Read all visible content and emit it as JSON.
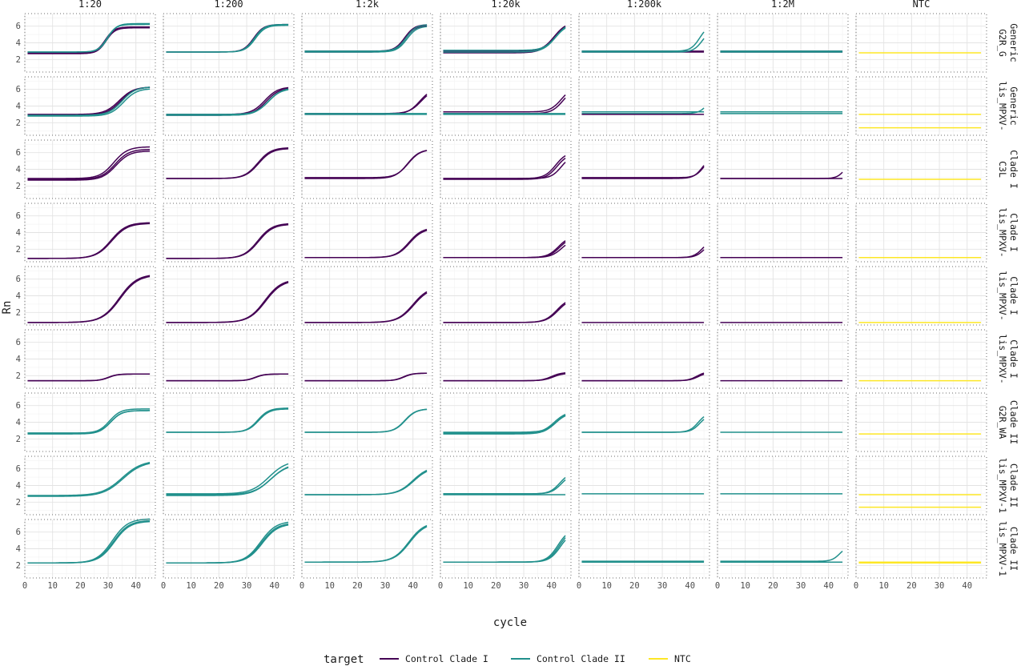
{
  "chart_data": {
    "type": "line",
    "title": "",
    "xlabel": "cycle",
    "ylabel": "Rn",
    "xlim": [
      0,
      47
    ],
    "ylim": [
      0.5,
      7.5
    ],
    "x_ticks": [
      0,
      10,
      20,
      30,
      40
    ],
    "y_ticks": [
      2,
      4,
      6
    ],
    "grid": true,
    "legend_position": "bottom",
    "legend_title": "target",
    "facet_cols": [
      "1:20",
      "1:200",
      "1:2k",
      "1:20k",
      "1:200k",
      "1:2M",
      "NTC"
    ],
    "facet_rows": [
      {
        "line1": "Generic",
        "line2": "G2R_G"
      },
      {
        "line1": "Generic",
        "line2": "lis_MPXV-"
      },
      {
        "line1": "Clade I",
        "line2": "C3L"
      },
      {
        "line1": "Clade I",
        "line2": "lis_MPXV-"
      },
      {
        "line1": "Clade I",
        "line2": "lis_MPXV-"
      },
      {
        "line1": "Clade I",
        "line2": "lis_MPXV-"
      },
      {
        "line1": "Clade II",
        "line2": "G2R_WA"
      },
      {
        "line1": "Clade II",
        "line2": "lis_MPXV-1"
      },
      {
        "line1": "Clade II",
        "line2": "lis_MPXV-1"
      }
    ],
    "series": [
      {
        "name": "Control Clade I",
        "color": "#440154"
      },
      {
        "name": "Control Clade II",
        "color": "#21908C"
      },
      {
        "name": "NTC",
        "color": "#FDE725"
      }
    ],
    "curve_model": "sigmoid: y = base + amp / (1 + exp(-(cycle - mid) / slope)); flat line when amp = 0",
    "curve_params": [
      "series",
      "base",
      "amp",
      "mid",
      "slope"
    ],
    "curves": [
      [
        [
          [
            0,
            2.8,
            3.1,
            29,
            1.6
          ],
          [
            0,
            2.7,
            3.1,
            29.3,
            1.6
          ],
          [
            1,
            2.9,
            3.3,
            29.6,
            1.6
          ],
          [
            1,
            2.9,
            3.4,
            29.9,
            1.6
          ]
        ],
        [
          [
            0,
            2.9,
            3.3,
            32.5,
            1.8
          ],
          [
            1,
            2.9,
            3.3,
            32.8,
            1.8
          ],
          [
            1,
            2.9,
            3.2,
            33.1,
            1.8
          ]
        ],
        [
          [
            0,
            3.0,
            3.2,
            37,
            1.8
          ],
          [
            0,
            2.9,
            3.2,
            37.3,
            1.8
          ],
          [
            1,
            3.0,
            3.2,
            37.5,
            1.8
          ],
          [
            1,
            2.9,
            3.1,
            37.8,
            1.8
          ]
        ],
        [
          [
            0,
            2.8,
            3.5,
            40.5,
            2.2
          ],
          [
            0,
            3.0,
            3.5,
            41,
            2.2
          ],
          [
            1,
            2.9,
            3.4,
            41.3,
            2.2
          ],
          [
            1,
            3.1,
            3.4,
            41.7,
            2.2
          ]
        ],
        [
          [
            0,
            2.9,
            0,
            0,
            1
          ],
          [
            0,
            3.0,
            0,
            0,
            1
          ],
          [
            1,
            3.0,
            3.2,
            43.5,
            1.6
          ],
          [
            1,
            2.9,
            2.8,
            44.5,
            1.6
          ]
        ],
        [
          [
            0,
            2.9,
            0,
            0,
            1
          ],
          [
            0,
            3.0,
            0,
            0,
            1
          ],
          [
            1,
            3.0,
            0,
            0,
            1
          ],
          [
            1,
            2.9,
            0,
            0,
            1
          ]
        ],
        [
          [
            2,
            2.8,
            0,
            0,
            1
          ]
        ]
      ],
      [
        [
          [
            0,
            3.0,
            3.3,
            34,
            2.6
          ],
          [
            0,
            2.9,
            3.4,
            34.5,
            2.6
          ],
          [
            1,
            2.8,
            3.3,
            35.5,
            2.4
          ],
          [
            1,
            2.9,
            3.4,
            35,
            2.4
          ]
        ],
        [
          [
            0,
            3.0,
            3.3,
            36.5,
            2.4
          ],
          [
            0,
            2.9,
            3.3,
            37,
            2.4
          ],
          [
            1,
            3.0,
            3.2,
            38,
            2.4
          ],
          [
            1,
            2.9,
            3.2,
            37.6,
            2.4
          ]
        ],
        [
          [
            0,
            3.0,
            3.2,
            42.5,
            2.2
          ],
          [
            0,
            3.1,
            3.0,
            43,
            2.2
          ],
          [
            1,
            3.1,
            0,
            0,
            1
          ],
          [
            1,
            3.0,
            0,
            0,
            1
          ]
        ],
        [
          [
            0,
            3.3,
            3.0,
            43.5,
            2.0
          ],
          [
            0,
            3.1,
            3.0,
            44,
            2.0
          ],
          [
            1,
            3.1,
            0,
            0,
            1
          ],
          [
            1,
            3.0,
            0,
            0,
            1
          ]
        ],
        [
          [
            1,
            3.3,
            0,
            0,
            1
          ],
          [
            1,
            3.1,
            3.0,
            47,
            1.6
          ],
          [
            0,
            3.0,
            0,
            0,
            1
          ]
        ],
        [
          [
            1,
            3.3,
            0,
            0,
            1
          ],
          [
            1,
            3.1,
            0,
            0,
            1
          ]
        ],
        [
          [
            2,
            3.0,
            0,
            0,
            1
          ],
          [
            2,
            1.4,
            0,
            0,
            1
          ]
        ]
      ],
      [
        [
          [
            0,
            2.9,
            3.8,
            32,
            2.5
          ],
          [
            0,
            2.8,
            3.6,
            32.5,
            2.5
          ],
          [
            0,
            2.7,
            3.5,
            32.8,
            2.5
          ]
        ],
        [
          [
            0,
            2.9,
            3.7,
            34,
            2.4
          ],
          [
            0,
            2.9,
            3.6,
            34.3,
            2.4
          ]
        ],
        [
          [
            0,
            2.9,
            3.5,
            38,
            2.2
          ],
          [
            0,
            3.0,
            3.4,
            38.3,
            2.2
          ]
        ],
        [
          [
            0,
            2.9,
            3.2,
            41.5,
            2.0
          ],
          [
            0,
            2.8,
            3.1,
            42,
            2.0
          ],
          [
            0,
            2.9,
            2.8,
            43.5,
            1.8
          ]
        ],
        [
          [
            0,
            2.9,
            2.7,
            44.5,
            1.6
          ],
          [
            0,
            3.0,
            2.6,
            45,
            1.6
          ]
        ],
        [
          [
            0,
            2.9,
            2.3,
            46,
            1.4
          ],
          [
            0,
            2.9,
            0,
            0,
            1
          ]
        ],
        [
          [
            2,
            2.8,
            0,
            0,
            1
          ]
        ]
      ],
      [
        [
          [
            0,
            0.9,
            4.3,
            31,
            2.8
          ],
          [
            0,
            0.9,
            4.2,
            31.3,
            2.8
          ]
        ],
        [
          [
            0,
            0.9,
            4.2,
            34,
            2.6
          ],
          [
            0,
            0.9,
            4.1,
            34.3,
            2.6
          ]
        ],
        [
          [
            0,
            1.0,
            3.6,
            38.5,
            2.4
          ],
          [
            0,
            1.0,
            3.5,
            38.8,
            2.4
          ]
        ],
        [
          [
            0,
            1.0,
            2.6,
            42.5,
            2.0
          ],
          [
            0,
            1.0,
            2.5,
            43,
            2.0
          ],
          [
            0,
            1.0,
            2.3,
            43.8,
            2.0
          ]
        ],
        [
          [
            0,
            1.0,
            2.2,
            44.5,
            1.6
          ],
          [
            0,
            1.0,
            2.0,
            45.2,
            1.6
          ]
        ],
        [
          [
            0,
            1.0,
            0,
            0,
            1
          ]
        ],
        [
          [
            2,
            1.0,
            0,
            0,
            1
          ]
        ]
      ],
      [
        [
          [
            0,
            0.8,
            5.8,
            34,
            3.2
          ],
          [
            0,
            0.8,
            5.7,
            34.3,
            3.2
          ]
        ],
        [
          [
            0,
            0.8,
            5.2,
            36.5,
            3.0
          ],
          [
            0,
            0.8,
            5.1,
            36.8,
            3.0
          ]
        ],
        [
          [
            0,
            0.8,
            4.3,
            40,
            2.8
          ],
          [
            0,
            0.8,
            4.2,
            40.3,
            2.8
          ]
        ],
        [
          [
            0,
            0.8,
            3.0,
            42,
            2.2
          ],
          [
            0,
            0.8,
            2.9,
            42.4,
            2.2
          ]
        ],
        [
          [
            0,
            0.8,
            0,
            0,
            1
          ]
        ],
        [
          [
            0,
            0.8,
            0,
            0,
            1
          ]
        ],
        [
          [
            2,
            0.8,
            0,
            0,
            1
          ]
        ]
      ],
      [
        [
          [
            0,
            1.4,
            0.8,
            30,
            1.6
          ],
          [
            0,
            1.4,
            0.8,
            30.3,
            1.6
          ]
        ],
        [
          [
            0,
            1.4,
            0.8,
            33,
            1.6
          ],
          [
            0,
            1.4,
            0.8,
            33.3,
            1.6
          ]
        ],
        [
          [
            0,
            1.4,
            0.9,
            36.5,
            1.6
          ],
          [
            0,
            1.4,
            0.9,
            36.8,
            1.6
          ]
        ],
        [
          [
            0,
            1.4,
            1.0,
            40,
            1.8
          ],
          [
            0,
            1.4,
            0.9,
            40.6,
            1.8
          ]
        ],
        [
          [
            0,
            1.4,
            1.1,
            42.5,
            1.6
          ],
          [
            0,
            1.4,
            1.0,
            43,
            1.6
          ]
        ],
        [
          [
            0,
            1.4,
            0,
            0,
            1
          ]
        ],
        [
          [
            2,
            1.4,
            0,
            0,
            1
          ]
        ]
      ],
      [
        [
          [
            1,
            2.7,
            2.9,
            30.5,
            2.0
          ],
          [
            1,
            2.6,
            2.8,
            30.8,
            2.0
          ],
          [
            1,
            2.7,
            2.7,
            31,
            2.0
          ]
        ],
        [
          [
            1,
            2.8,
            2.9,
            34,
            2.0
          ],
          [
            1,
            2.8,
            2.8,
            34.3,
            2.0
          ]
        ],
        [
          [
            1,
            2.8,
            2.8,
            37,
            2.0
          ],
          [
            1,
            2.8,
            2.8,
            37.2,
            2.0
          ]
        ],
        [
          [
            1,
            2.7,
            2.6,
            41,
            2.2
          ],
          [
            1,
            2.6,
            2.6,
            41.4,
            2.2
          ],
          [
            1,
            2.8,
            2.5,
            41.8,
            2.2
          ]
        ],
        [
          [
            1,
            2.8,
            2.4,
            43,
            1.6
          ],
          [
            1,
            2.8,
            2.2,
            43.6,
            1.6
          ]
        ],
        [
          [
            1,
            2.8,
            0,
            0,
            1
          ]
        ],
        [
          [
            2,
            2.6,
            0,
            0,
            1
          ]
        ]
      ],
      [
        [
          [
            1,
            2.8,
            4.2,
            35,
            3.6
          ],
          [
            1,
            2.7,
            4.2,
            35.3,
            3.6
          ]
        ],
        [
          [
            1,
            3.0,
            4.0,
            38,
            3.2
          ],
          [
            1,
            2.8,
            3.8,
            38.5,
            3.2
          ],
          [
            1,
            2.9,
            3.8,
            38.8,
            3.2
          ]
        ],
        [
          [
            1,
            2.9,
            3.4,
            40,
            2.8
          ],
          [
            1,
            2.9,
            3.3,
            40.3,
            2.8
          ]
        ],
        [
          [
            1,
            3.0,
            2.6,
            43,
            1.8
          ],
          [
            1,
            3.0,
            2.4,
            43.5,
            1.8
          ],
          [
            1,
            2.9,
            0,
            0,
            1
          ]
        ],
        [
          [
            1,
            3.0,
            0,
            0,
            1
          ]
        ],
        [
          [
            1,
            3.0,
            0,
            0,
            1
          ]
        ],
        [
          [
            2,
            2.9,
            0,
            0,
            1
          ],
          [
            2,
            1.4,
            0,
            0,
            1
          ]
        ]
      ],
      [
        [
          [
            1,
            2.3,
            5.3,
            31.5,
            2.8
          ],
          [
            1,
            2.3,
            5.1,
            31.9,
            2.8
          ],
          [
            1,
            2.3,
            5.0,
            32.2,
            2.8
          ]
        ],
        [
          [
            1,
            2.3,
            5.0,
            35,
            2.8
          ],
          [
            1,
            2.3,
            4.8,
            35.3,
            2.8
          ],
          [
            1,
            2.3,
            4.7,
            35.6,
            2.8
          ]
        ],
        [
          [
            1,
            2.4,
            4.8,
            38.5,
            2.8
          ],
          [
            1,
            2.4,
            4.7,
            38.8,
            2.8
          ]
        ],
        [
          [
            1,
            2.4,
            4.0,
            42.3,
            2.0
          ],
          [
            1,
            2.4,
            3.9,
            42.8,
            2.0
          ],
          [
            1,
            2.4,
            3.7,
            43.2,
            2.0
          ]
        ],
        [
          [
            1,
            2.5,
            0,
            0,
            1
          ],
          [
            1,
            2.4,
            0,
            0,
            1
          ]
        ],
        [
          [
            1,
            2.5,
            1.8,
            44,
            1.4
          ],
          [
            1,
            2.4,
            0,
            0,
            1
          ]
        ],
        [
          [
            2,
            2.4,
            0,
            0,
            1
          ],
          [
            2,
            2.3,
            0,
            0,
            1
          ]
        ]
      ]
    ]
  }
}
